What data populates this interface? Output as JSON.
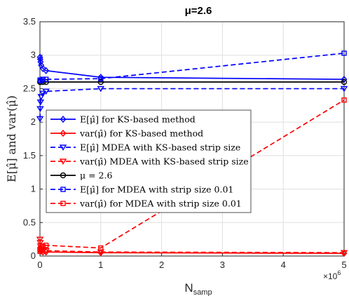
{
  "chart_data": {
    "type": "line",
    "title": "μ=2.6",
    "xlabel": "N",
    "xlabel_sub": "samp",
    "ylabel": "E[μ̂] and var(μ̂)",
    "x_multiplier": "×10",
    "x_multiplier_exp": "6",
    "xlim": [
      0,
      5000000
    ],
    "ylim": [
      0,
      3.5
    ],
    "xticks": [
      0,
      1,
      2,
      3,
      4,
      5
    ],
    "yticks": [
      0,
      0.5,
      1,
      1.5,
      2,
      2.5,
      3,
      3.5
    ],
    "grid": true,
    "legend_position": "middle-left",
    "series": [
      {
        "name": "E[μ̂] for KS-based method",
        "color": "#0000ff",
        "dash": "solid",
        "marker": "diamond",
        "x": [
          1000,
          5000,
          10000,
          20000,
          50000,
          100000,
          1000000,
          5000000
        ],
        "y": [
          2.97,
          2.94,
          2.9,
          2.85,
          2.8,
          2.77,
          2.67,
          2.64
        ]
      },
      {
        "name": "var(μ̂) for KS-based method",
        "color": "#ff0000",
        "dash": "solid",
        "marker": "diamond",
        "x": [
          1000,
          5000,
          10000,
          20000,
          50000,
          100000,
          1000000,
          5000000
        ],
        "y": [
          0.12,
          0.09,
          0.08,
          0.07,
          0.06,
          0.06,
          0.05,
          0.04
        ]
      },
      {
        "name": "E[μ̂] MDEA with KS-based strip size",
        "color": "#0000ff",
        "dash": "dashed",
        "marker": "triangle-down",
        "x": [
          1000,
          5000,
          10000,
          20000,
          50000,
          100000,
          1000000,
          5000000
        ],
        "y": [
          2.05,
          2.2,
          2.3,
          2.38,
          2.43,
          2.46,
          2.5,
          2.5
        ]
      },
      {
        "name": "var(μ̂) MDEA with KS-based strip size",
        "color": "#ff0000",
        "dash": "dashed",
        "marker": "triangle-down",
        "x": [
          1000,
          5000,
          10000,
          20000,
          50000,
          100000,
          1000000,
          5000000
        ],
        "y": [
          0.25,
          0.2,
          0.15,
          0.12,
          0.09,
          0.08,
          0.06,
          0.05
        ]
      },
      {
        "name": "μ = 2.6",
        "color": "#000000",
        "dash": "solid",
        "marker": "circle",
        "x": [
          1000,
          10000,
          50000,
          100000,
          1000000,
          5000000
        ],
        "y": [
          2.6,
          2.6,
          2.6,
          2.6,
          2.6,
          2.6
        ]
      },
      {
        "name": "E[μ̂] for MDEA with strip size 0.01",
        "color": "#0000ff",
        "dash": "dashed",
        "marker": "square",
        "x": [
          1000,
          5000,
          10000,
          50000,
          100000,
          1000000,
          5000000
        ],
        "y": [
          2.62,
          2.63,
          2.62,
          2.64,
          2.64,
          2.65,
          3.03
        ]
      },
      {
        "name": "var(μ̂) for MDEA with strip size 0.01",
        "color": "#ff0000",
        "dash": "dashed",
        "marker": "square",
        "x": [
          1000,
          5000,
          10000,
          50000,
          100000,
          1000000,
          5000000
        ],
        "y": [
          0.07,
          0.09,
          0.1,
          0.14,
          0.16,
          0.12,
          2.33
        ]
      }
    ]
  }
}
